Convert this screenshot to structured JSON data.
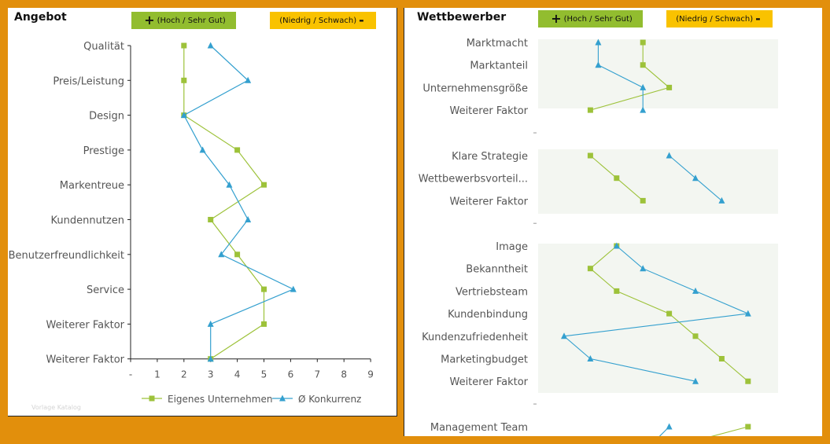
{
  "left": {
    "title": "Angebot",
    "tag_plus_text": "(Hoch / Sehr Gut)",
    "tag_minus_text": "(Niedrig / Schwach)",
    "plus_symbol": "+",
    "minus_symbol": "-",
    "watermark": "Vorlage Katalog"
  },
  "right": {
    "title": "Wettbewerber",
    "tag_plus_text": "(Hoch / Sehr Gut)",
    "tag_minus_text": "(Niedrig / Schwach)",
    "plus_symbol": "+",
    "minus_symbol": "-"
  },
  "colors": {
    "own": "#9dc23a",
    "competition": "#34a0cf",
    "tag_plus": "#92bd2f",
    "tag_minus": "#f9c200",
    "frame": "#e28f0c"
  },
  "chart_data": [
    {
      "type": "line",
      "orientation": "vertical-profile",
      "categories": [
        "Qualität",
        "Preis/Leistung",
        "Design",
        "Prestige",
        "Markentreue",
        "Kundennutzen",
        "Benutzerfreundlichkeit",
        "Service",
        "Weiterer Faktor",
        "Weiterer Faktor"
      ],
      "series": [
        {
          "name": "Eigenes Unternehmen",
          "marker": "square",
          "values": [
            2,
            2,
            2,
            4,
            5,
            3,
            4,
            5,
            5,
            3
          ]
        },
        {
          "name": "Ø Konkurrenz",
          "marker": "triangle",
          "values": [
            3,
            4.4,
            2,
            2.7,
            3.7,
            4.4,
            3.4,
            6.1,
            3,
            3
          ]
        }
      ],
      "xticks": [
        "-",
        "1",
        "2",
        "3",
        "4",
        "5",
        "6",
        "7",
        "8",
        "9"
      ],
      "xlim": [
        0,
        9
      ],
      "legend": "bottom"
    },
    {
      "type": "line",
      "orientation": "vertical-profile",
      "groups": [
        {
          "categories": [
            "Marktmacht",
            "Marktanteil",
            "Unternehmensgröße",
            "Weiterer Faktor"
          ],
          "own": [
            3,
            3,
            4,
            1
          ],
          "competition": [
            1.3,
            1.3,
            3,
            3
          ]
        },
        {
          "categories": [
            "Klare Strategie",
            "Wettbewerbsvorteil...",
            "Weiterer Faktor"
          ],
          "own": [
            1,
            2,
            3
          ],
          "competition": [
            4,
            5,
            6
          ]
        },
        {
          "categories": [
            "Image",
            "Bekanntheit",
            "Vertriebsteam",
            "Kundenbindung",
            "Kundenzufriedenheit",
            "Marketingbudget",
            "Weiterer Faktor"
          ],
          "own": [
            2,
            1,
            2,
            4,
            5,
            6,
            7
          ],
          "competition": [
            2,
            3,
            5,
            7,
            0,
            1,
            5
          ]
        },
        {
          "categories": [
            "Management Team"
          ],
          "own": [
            7
          ],
          "competition": [
            4
          ]
        }
      ]
    }
  ]
}
